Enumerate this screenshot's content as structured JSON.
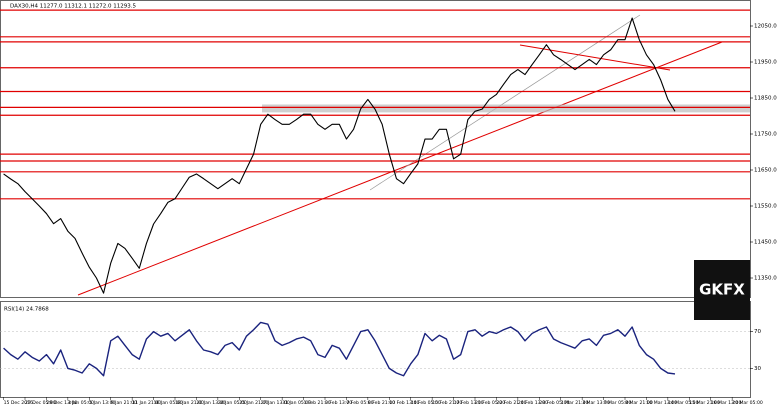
{
  "chart_data": [
    {
      "type": "line",
      "title": "DAX30,H4 11277.0 11312.1 11272.0 11293.5",
      "color": "#000000",
      "categories": [
        "15 Dec 2016",
        null,
        null,
        "27 Dec 05:00",
        null,
        null,
        "29 Dec 13:00",
        null,
        null,
        "3 Jan 05:00",
        null,
        null,
        "5 Jan 13:00",
        null,
        null,
        "9 Jan 21:00",
        null,
        null,
        "11 Jan 21:00",
        null,
        null,
        "16 Jan 05:00",
        null,
        null,
        "18 Jan 21:00",
        null,
        null,
        "20 Jan 13:00",
        null,
        null,
        "24 Jan 05:00",
        null,
        null,
        "25 Jan 21:00",
        null,
        null,
        "27 Jan 13:00",
        null,
        null,
        "31 Jan 05:00",
        null,
        null,
        "1 Feb 21:00",
        null,
        null,
        "3 Feb 13:00",
        null,
        null,
        "7 Feb 05:00",
        null,
        null,
        "8 Feb 21:00",
        null,
        null,
        "10 Feb 13:00",
        null,
        null,
        "14 Feb 05:00",
        null,
        null,
        "15 Feb 21:00",
        null,
        null,
        "17 Feb 13:00",
        null,
        null,
        "21 Feb 05:00",
        null,
        null,
        "22 Feb 21:00",
        null,
        null,
        "24 Feb 13:00",
        null,
        null,
        "28 Feb 05:00",
        null,
        null,
        "1 Mar 21:00",
        null,
        null,
        "3 Mar 13:00",
        null,
        null,
        "7 Mar 05:00",
        null,
        null,
        "8 Mar 21:00",
        null,
        null,
        "10 Mar 13:00",
        null,
        null,
        "14 Mar 05:00",
        null,
        null,
        "15 Mar 21:00",
        null,
        null,
        "16 Mar 13:00",
        null,
        null,
        "20 Mar 05:00",
        null,
        null
      ],
      "values": [
        11639,
        11625,
        11612,
        11590,
        11570,
        11550,
        11529,
        11501,
        11515,
        11480,
        11460,
        11419,
        11380,
        11350,
        11308,
        11391,
        11446,
        11432,
        11405,
        11377,
        11446,
        11500,
        11529,
        11560,
        11570,
        11600,
        11630,
        11639,
        11626,
        11612,
        11598,
        11612,
        11626,
        11612,
        11653,
        11694,
        11777,
        11805,
        11790,
        11777,
        11777,
        11790,
        11805,
        11805,
        11777,
        11763,
        11777,
        11777,
        11736,
        11763,
        11820,
        11846,
        11819,
        11777,
        11694,
        11626,
        11612,
        11640,
        11667,
        11736,
        11736,
        11763,
        11763,
        11681,
        11694,
        11790,
        11813,
        11819,
        11846,
        11860,
        11888,
        11915,
        11929,
        11915,
        11943,
        11970,
        11998,
        11970,
        11957,
        11943,
        11929,
        11943,
        11957,
        11943,
        11970,
        11984,
        12012,
        12012,
        12072,
        12012,
        11970,
        11943,
        11900,
        11846,
        11813,
        null,
        null,
        null,
        null,
        null,
        null,
        null,
        null,
        null,
        null
      ],
      "ylim": [
        11300,
        12100
      ],
      "yticks": [
        {
          "value": 11350,
          "label": "11350.0"
        },
        {
          "value": 11450,
          "label": "11450.0"
        },
        {
          "value": 11550,
          "label": "11550.0"
        },
        {
          "value": 11650,
          "label": "11650.0"
        },
        {
          "value": 11750,
          "label": "11750.0"
        },
        {
          "value": 11850,
          "label": "11850.0"
        },
        {
          "value": 11950,
          "label": "11950.0"
        },
        {
          "value": 12050,
          "label": "12050.0"
        }
      ],
      "levels": [
        12094,
        12020,
        12006,
        11934,
        11868,
        11824,
        11802,
        11694,
        11675,
        11645,
        11570
      ],
      "level_color": "#e00000",
      "zone": [
        11810,
        11832
      ]
    },
    {
      "type": "line",
      "title": "RSI(14) 24.7868",
      "color": "#1a237e",
      "values": [
        52,
        45,
        40,
        48,
        42,
        38,
        45,
        35,
        50,
        30,
        28,
        25,
        35,
        30,
        22,
        60,
        65,
        55,
        45,
        40,
        62,
        70,
        65,
        68,
        60,
        66,
        72,
        60,
        50,
        48,
        45,
        55,
        58,
        50,
        65,
        72,
        80,
        78,
        60,
        55,
        58,
        62,
        64,
        60,
        45,
        42,
        55,
        52,
        40,
        55,
        70,
        72,
        60,
        45,
        30,
        25,
        22,
        35,
        45,
        68,
        60,
        66,
        62,
        40,
        45,
        70,
        72,
        65,
        70,
        68,
        72,
        75,
        70,
        60,
        68,
        72,
        75,
        62,
        58,
        55,
        52,
        60,
        62,
        55,
        66,
        68,
        72,
        65,
        75,
        55,
        45,
        40,
        30,
        25,
        24,
        null,
        null,
        null,
        null,
        null,
        null,
        null,
        null,
        null,
        null
      ],
      "ylim": [
        0,
        100
      ],
      "yticks": [
        30,
        70
      ]
    }
  ],
  "logo": "GKFX"
}
